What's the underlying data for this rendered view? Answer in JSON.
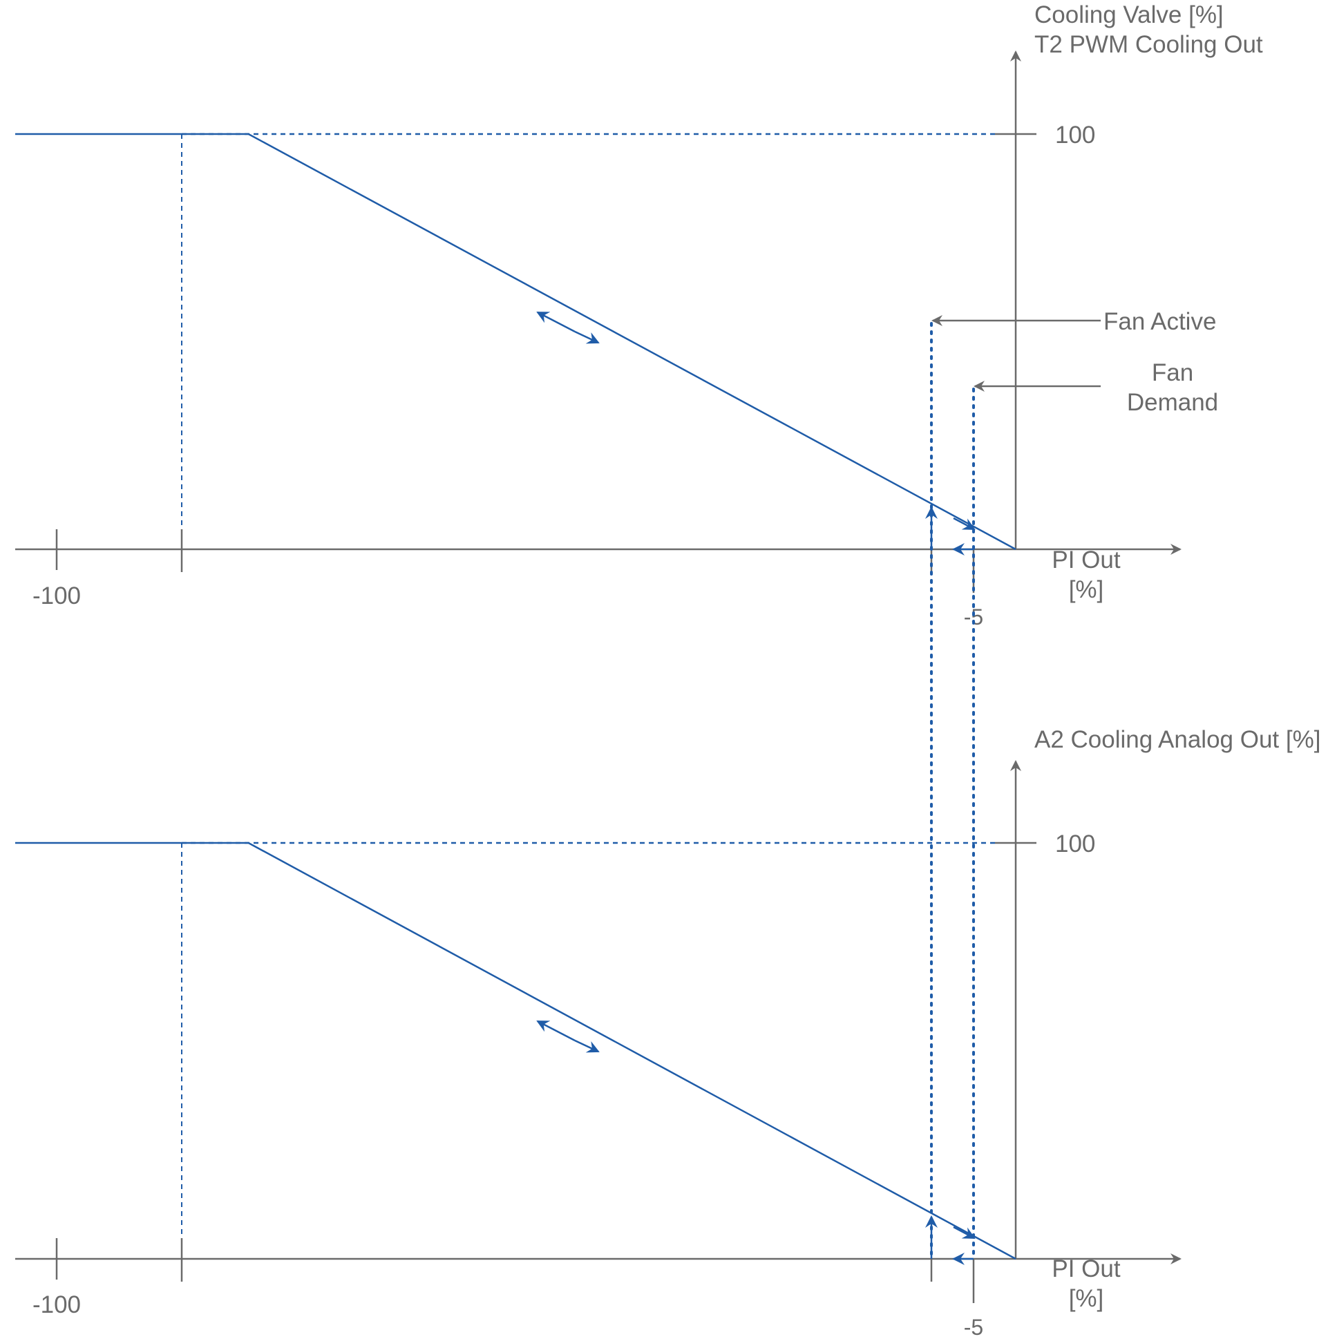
{
  "colors": {
    "axis": "#6a6a6a",
    "curve": "#1f5ca8",
    "text": "#6a6a6a"
  },
  "shared": {
    "fan_active_label": "Fan Active",
    "fan_demand_label_line1": "Fan",
    "fan_demand_label_line2": "Demand"
  },
  "chart_data": [
    {
      "type": "line",
      "ylabel_line1": "Cooling Valve [%]",
      "ylabel_line2": "T2 PWM Cooling Out",
      "xlabel_line1": "PI Out",
      "xlabel_line2": "[%]",
      "y_tick_label": "100",
      "x_tick_label_min": "-100",
      "x_tick_label_fan": "-5",
      "series": [
        {
          "x": [
            -120,
            -80,
            0
          ],
          "y": [
            100,
            100,
            0
          ]
        }
      ]
    },
    {
      "type": "line",
      "ylabel_line1": "A2 Cooling Analog Out [%]",
      "xlabel_line1": "PI Out",
      "xlabel_line2": "[%]",
      "y_tick_label": "100",
      "x_tick_label_min": "-100",
      "x_tick_label_fan": "-5",
      "series": [
        {
          "x": [
            -120,
            -80,
            0
          ],
          "y": [
            100,
            100,
            0
          ]
        }
      ]
    }
  ]
}
